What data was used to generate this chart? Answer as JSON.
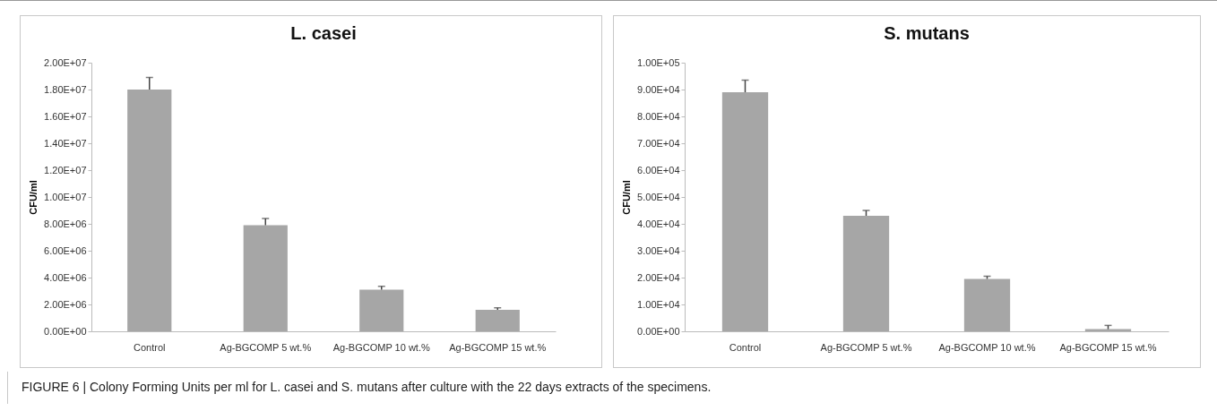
{
  "chart_data": [
    {
      "type": "bar",
      "title": "L. casei",
      "ylabel": "CFU/ml",
      "categories": [
        "Control",
        "Ag-BGCOMP 5 wt.%",
        "Ag-BGCOMP 10 wt.%",
        "Ag-BGCOMP 15 wt.%"
      ],
      "values": [
        18000000,
        7900000,
        3100000,
        1600000
      ],
      "errors": [
        [
          18000000,
          18900000
        ],
        [
          7900000,
          8400000
        ],
        [
          3100000,
          3350000
        ],
        [
          1600000,
          1750000
        ]
      ],
      "color": "#a6a6a6",
      "grid": false,
      "ylim": [
        0,
        20000000
      ],
      "yticks": [
        {
          "value": 0,
          "label": "0.00E+00"
        },
        {
          "value": 2000000,
          "label": "2.00E+06"
        },
        {
          "value": 4000000,
          "label": "4.00E+06"
        },
        {
          "value": 6000000,
          "label": "6.00E+06"
        },
        {
          "value": 8000000,
          "label": "8.00E+06"
        },
        {
          "value": 10000000,
          "label": "1.00E+07"
        },
        {
          "value": 12000000,
          "label": "1.20E+07"
        },
        {
          "value": 14000000,
          "label": "1.40E+07"
        },
        {
          "value": 16000000,
          "label": "1.60E+07"
        },
        {
          "value": 18000000,
          "label": "1.80E+07"
        },
        {
          "value": 20000000,
          "label": "2.00E+07"
        }
      ],
      "annotations": [
        "FIGURE 6 | Colony Forming Units per ml for L. casei and S. mutans after culture with the 22 days extracts of the specimens."
      ]
    },
    {
      "type": "bar",
      "title": "S. mutans",
      "ylabel": "CFU/ml",
      "categories": [
        "Control",
        "Ag-BGCOMP 5 wt.%",
        "Ag-BGCOMP 10 wt.%",
        "Ag-BGCOMP 15 wt.%"
      ],
      "values": [
        89000,
        43000,
        19500,
        800
      ],
      "errors": [
        [
          89000,
          93500
        ],
        [
          43000,
          45000
        ],
        [
          19500,
          20500
        ],
        [
          800,
          2200
        ]
      ],
      "color": "#a6a6a6",
      "grid": false,
      "ylim": [
        0,
        100000
      ],
      "yticks": [
        {
          "value": 0,
          "label": "0.00E+00"
        },
        {
          "value": 10000,
          "label": "1.00E+04"
        },
        {
          "value": 20000,
          "label": "2.00E+04"
        },
        {
          "value": 30000,
          "label": "3.00E+04"
        },
        {
          "value": 40000,
          "label": "4.00E+04"
        },
        {
          "value": 50000,
          "label": "5.00E+04"
        },
        {
          "value": 60000,
          "label": "6.00E+04"
        },
        {
          "value": 70000,
          "label": "7.00E+04"
        },
        {
          "value": 80000,
          "label": "8.00E+04"
        },
        {
          "value": 90000,
          "label": "9.00E+04"
        },
        {
          "value": 100000,
          "label": "1.00E+05"
        }
      ]
    }
  ]
}
